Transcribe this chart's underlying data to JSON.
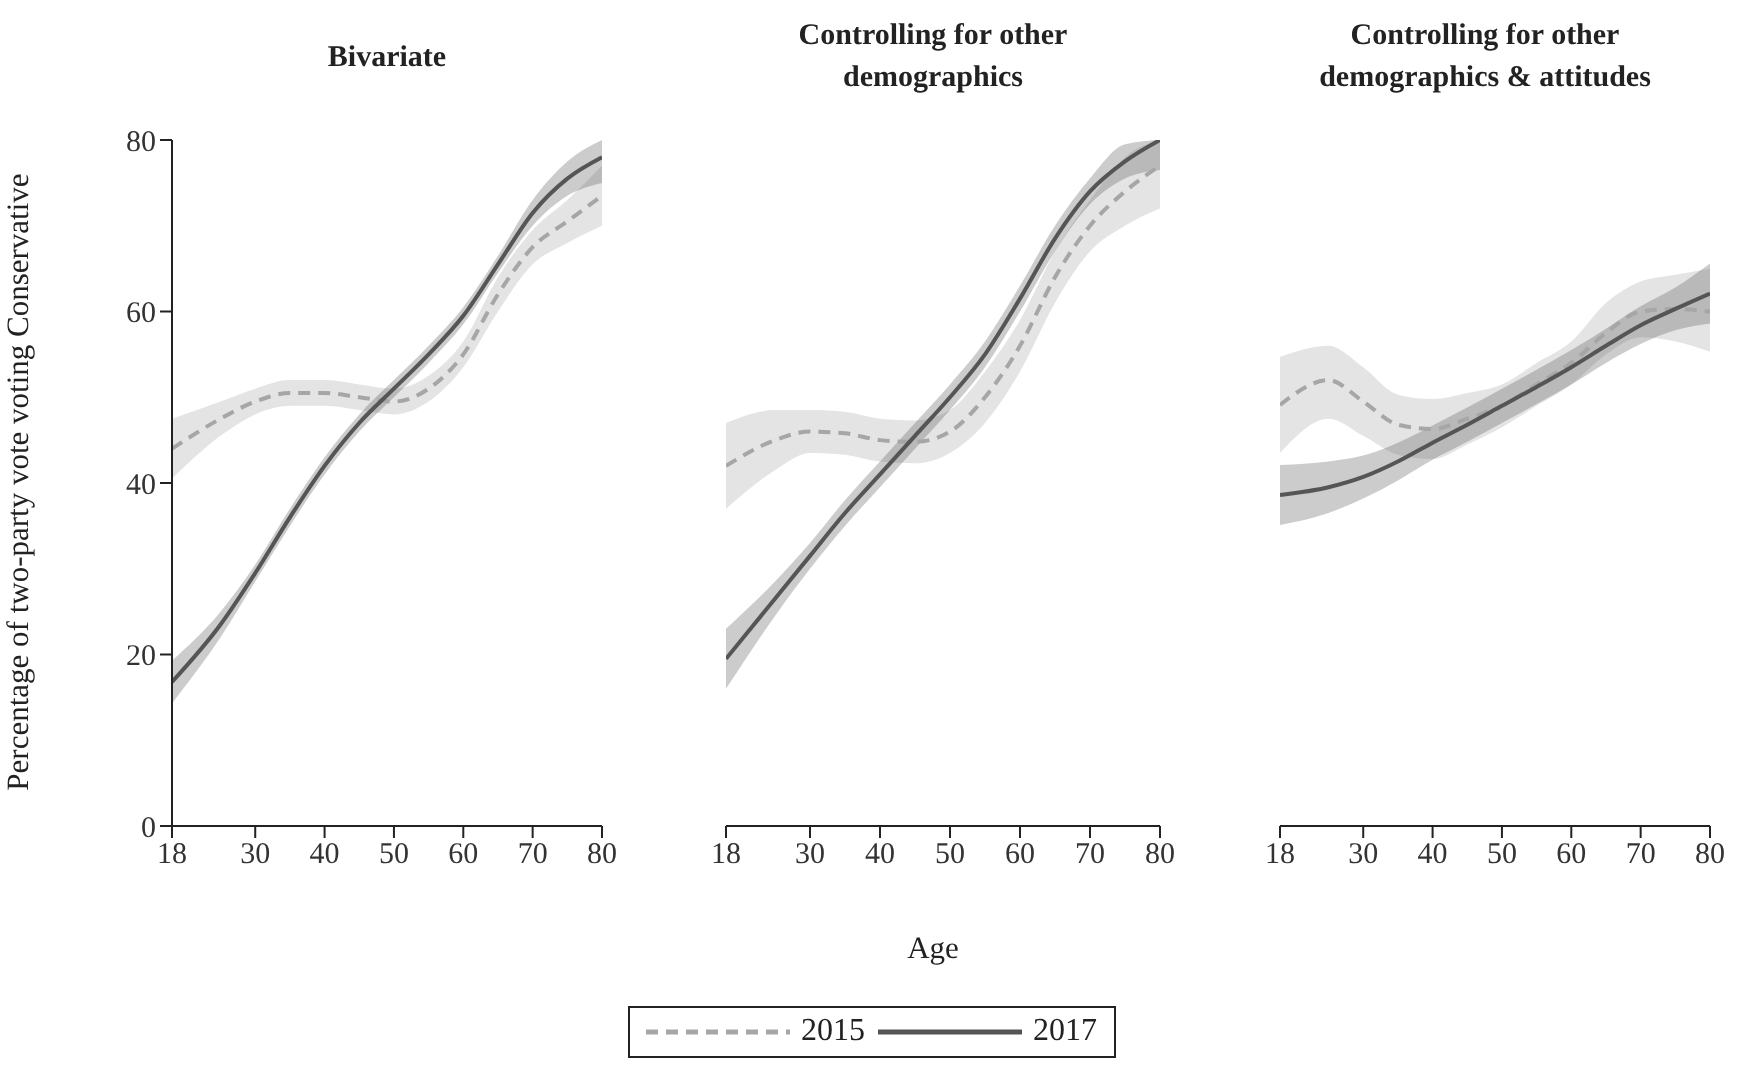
{
  "chart_data": [
    {
      "type": "line",
      "title": "Bivariate",
      "ylabel": "Percentage of two-party vote voting Conservative",
      "x": [
        18,
        25,
        30,
        35,
        40,
        45,
        50,
        55,
        60,
        65,
        70,
        75,
        80
      ],
      "xlim": [
        18,
        80
      ],
      "xticks": [
        18,
        30,
        40,
        50,
        60,
        70,
        80
      ],
      "ylim": [
        0,
        80
      ],
      "yticks": [
        0,
        20,
        40,
        60,
        80
      ],
      "grid": false,
      "legend": "bottom",
      "marker": "none",
      "series": [
        {
          "name": "2015",
          "color": "#a6a6a6",
          "line_style": "dashed",
          "values": [
            44,
            47.5,
            49.5,
            50.5,
            50.5,
            50,
            49.5,
            51,
            55,
            62,
            67.5,
            70.5,
            73.5
          ],
          "lower": [
            40.5,
            45.5,
            48,
            49,
            49,
            48.5,
            48,
            49.5,
            53.5,
            60,
            65.5,
            68,
            70
          ],
          "upper": [
            47.5,
            49.5,
            51,
            52,
            52,
            51.5,
            51,
            52.5,
            56.5,
            64,
            69.5,
            73,
            77
          ]
        },
        {
          "name": "2017",
          "color": "#555555",
          "line_style": "solid",
          "values": [
            16.8,
            23.5,
            29.5,
            36,
            42,
            47,
            51,
            55,
            59.5,
            65.5,
            71.5,
            75.5,
            78
          ],
          "lower": [
            14.3,
            22,
            28.5,
            35,
            41,
            46,
            50,
            54,
            58.5,
            64.5,
            70,
            73.5,
            75
          ],
          "upper": [
            19.3,
            25,
            30.5,
            37,
            43,
            48,
            52,
            56,
            60.5,
            66.5,
            73,
            77.5,
            80
          ]
        }
      ]
    },
    {
      "type": "line",
      "title": "Controlling for other demographics",
      "xlabel": "Age",
      "x": [
        18,
        25,
        30,
        35,
        40,
        45,
        50,
        55,
        60,
        65,
        70,
        75,
        80
      ],
      "xlim": [
        18,
        80
      ],
      "xticks": [
        18,
        30,
        40,
        50,
        60,
        70,
        80
      ],
      "ylim": [
        0,
        80
      ],
      "tick_labels": "x",
      "grid": false,
      "marker": "none",
      "series": [
        {
          "name": "2015",
          "color": "#a6a6a6",
          "line_style": "dashed",
          "values": [
            42,
            45,
            46,
            45.8,
            45,
            44.8,
            46,
            50,
            56,
            64,
            70,
            74,
            77
          ],
          "lower": [
            37,
            41.5,
            43.5,
            43.3,
            42.5,
            42.3,
            43.5,
            47,
            53,
            61,
            67,
            70,
            72
          ],
          "upper": [
            47,
            48.5,
            48.5,
            48.3,
            47.5,
            47.3,
            48.5,
            53,
            59,
            67,
            73,
            78,
            80
          ]
        },
        {
          "name": "2017",
          "color": "#555555",
          "line_style": "solid",
          "values": [
            19.5,
            26.5,
            31.5,
            36.5,
            41,
            45.5,
            50,
            55,
            61.5,
            68.5,
            74,
            77.5,
            80
          ],
          "lower": [
            16,
            24.5,
            30,
            35,
            39.5,
            44,
            48.5,
            53.5,
            60,
            67,
            72.5,
            75.5,
            76.5
          ],
          "upper": [
            23,
            28.5,
            33,
            38,
            42.5,
            47,
            51.5,
            56.5,
            63,
            70,
            75.5,
            79.5,
            80
          ]
        }
      ]
    },
    {
      "type": "line",
      "title": "Controlling for other demographics & attitudes",
      "x": [
        18,
        25,
        30,
        35,
        40,
        45,
        50,
        55,
        60,
        65,
        70,
        75,
        80
      ],
      "xlim": [
        18,
        80
      ],
      "xticks": [
        18,
        30,
        40,
        50,
        60,
        70,
        80
      ],
      "ylim": [
        0,
        80
      ],
      "tick_labels": "x",
      "grid": false,
      "marker": "none",
      "series": [
        {
          "name": "2015",
          "color": "#a6a6a6",
          "line_style": "dashed",
          "values": [
            49.1,
            52,
            49.5,
            46.8,
            46.3,
            47.5,
            49,
            51.5,
            54,
            57.5,
            60,
            60.3,
            60
          ],
          "lower": [
            43.5,
            47.5,
            45.5,
            43.3,
            42.8,
            44.5,
            46.5,
            49,
            51.5,
            55,
            57,
            56.5,
            55.3
          ],
          "upper": [
            54.7,
            56,
            53.5,
            50.3,
            49.8,
            50.5,
            51.5,
            54,
            56.5,
            61,
            63.5,
            64.3,
            65
          ]
        },
        {
          "name": "2017",
          "color": "#555555",
          "line_style": "solid",
          "values": [
            38.6,
            39.5,
            40.7,
            42.5,
            44.7,
            46.8,
            49,
            51.2,
            53.5,
            56,
            58.4,
            60.3,
            62.1
          ],
          "lower": [
            35.1,
            36.5,
            38.2,
            40.3,
            42.7,
            44.8,
            47,
            49.2,
            51.5,
            54,
            56.2,
            57.8,
            58.6
          ],
          "upper": [
            42.1,
            42.5,
            43.2,
            44.7,
            46.7,
            48.8,
            51,
            53.2,
            55.5,
            58,
            60.6,
            62.8,
            65.6
          ]
        }
      ]
    }
  ]
}
